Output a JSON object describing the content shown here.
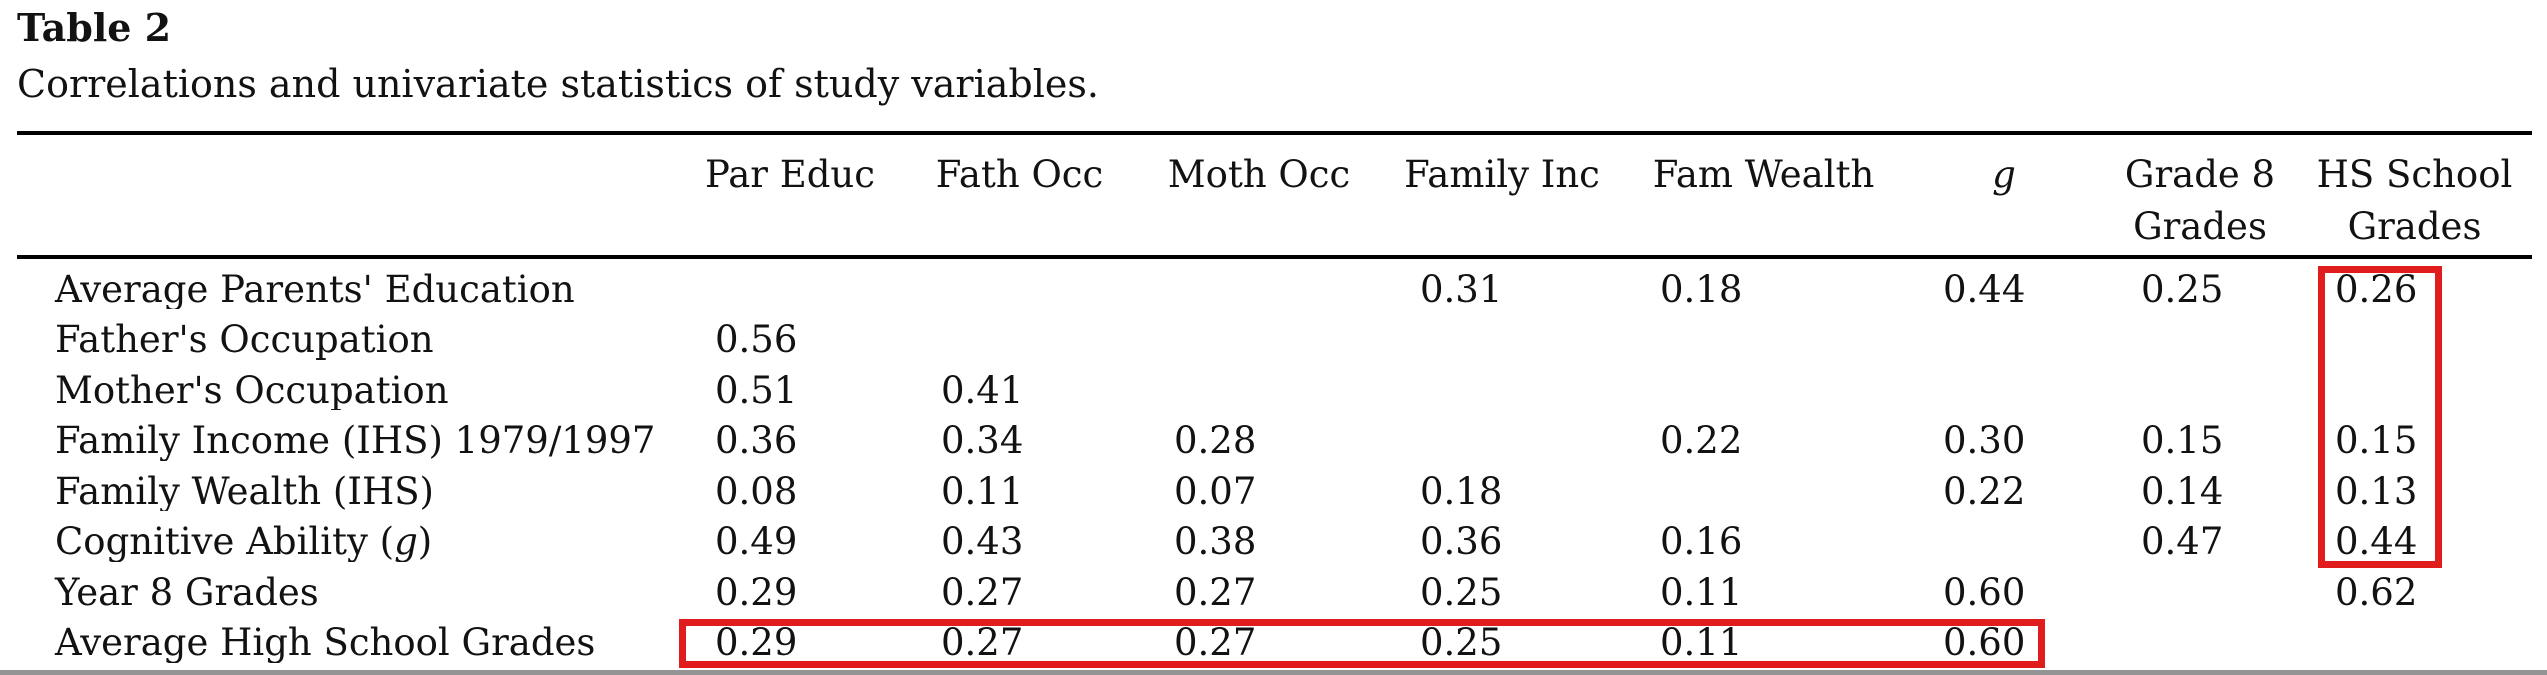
{
  "title": "Table 2",
  "subtitle": "Correlations and univariate statistics of study variables.",
  "matrix": {
    "header": [
      "Par Educ",
      "Fath Occ",
      "Moth Occ",
      "Family Inc",
      "Fam Wealth",
      "g",
      "Grade 8 Grades",
      "HS School Grades"
    ],
    "rows": [
      {
        "label": "Average Parents' Education",
        "values": [
          "",
          "",
          "",
          "0.31",
          "0.18",
          "0.44",
          "0.25",
          "0.26"
        ]
      },
      {
        "label": "Father's Occupation",
        "values": [
          "0.56",
          "",
          "",
          "",
          "",
          "",
          "",
          ""
        ]
      },
      {
        "label": "Mother's Occupation",
        "values": [
          "0.51",
          "0.41",
          "",
          "",
          "",
          "",
          "",
          ""
        ]
      },
      {
        "label": "Family Income (IHS) 1979/1997",
        "values": [
          "0.36",
          "0.34",
          "0.28",
          "",
          "0.22",
          "0.30",
          "0.15",
          "0.15"
        ]
      },
      {
        "label": "Family Wealth (IHS)",
        "values": [
          "0.08",
          "0.11",
          "0.07",
          "0.18",
          "",
          "0.22",
          "0.14",
          "0.13"
        ]
      },
      {
        "label": "Cognitive Ability (g)",
        "values": [
          "0.49",
          "0.43",
          "0.38",
          "0.36",
          "0.16",
          "",
          "0.47",
          "0.44"
        ]
      },
      {
        "label": "Year 8 Grades",
        "values": [
          "0.29",
          "0.27",
          "0.27",
          "0.25",
          "0.11",
          "0.60",
          "",
          "0.62"
        ]
      },
      {
        "label": "Average High School Grades",
        "values": [
          "0.29",
          "0.27",
          "0.27",
          "0.25",
          "0.11",
          "0.60",
          "",
          ""
        ]
      }
    ]
  },
  "highlights": {
    "color": "#e01c1c",
    "column_box_label": "HS School Grades column rows 1-6",
    "row_box_label": "Average High School Grades row values"
  }
}
